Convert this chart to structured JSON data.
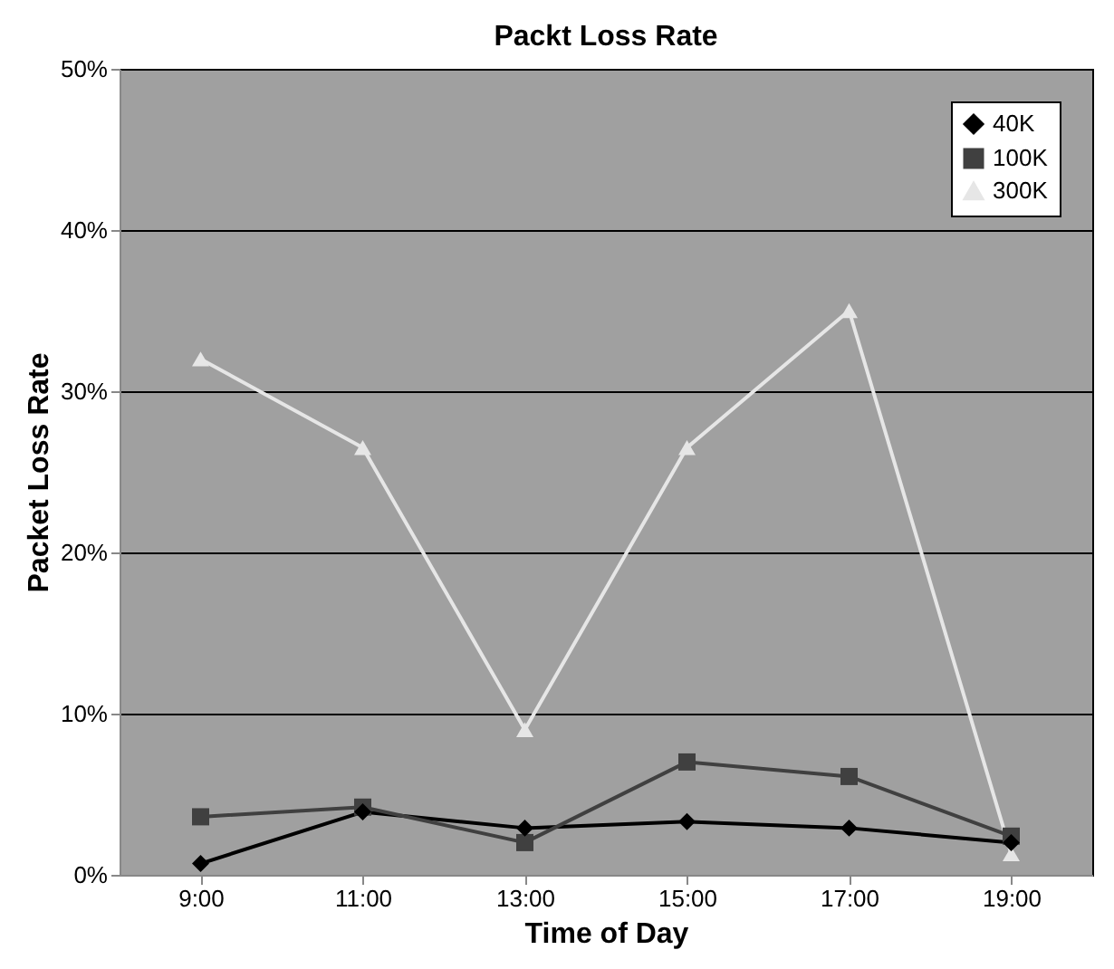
{
  "chart_data": {
    "type": "line",
    "title": "Packt Loss Rate",
    "xlabel": "Time of Day",
    "ylabel": "Packet Loss Rate",
    "categories": [
      "9:00",
      "11:00",
      "13:00",
      "15:00",
      "17:00",
      "19:00"
    ],
    "series": [
      {
        "name": "40K",
        "color": "#000000",
        "marker": "diamond",
        "values": [
          0.7,
          3.9,
          2.9,
          3.3,
          2.9,
          2.0
        ]
      },
      {
        "name": "100K",
        "color": "#404040",
        "marker": "square",
        "values": [
          3.6,
          4.2,
          2.0,
          7.0,
          6.1,
          2.4
        ]
      },
      {
        "name": "300K",
        "color": "#e6e6e6",
        "marker": "triangle",
        "values": [
          32,
          26.5,
          9,
          26.5,
          35,
          1.3
        ]
      }
    ],
    "ylim": [
      0,
      50
    ],
    "yticks": [
      {
        "value": 0,
        "label": "0%"
      },
      {
        "value": 10,
        "label": "10%"
      },
      {
        "value": 20,
        "label": "20%"
      },
      {
        "value": 30,
        "label": "30%"
      },
      {
        "value": 40,
        "label": "40%"
      },
      {
        "value": 50,
        "label": "50%"
      }
    ],
    "grid": "y",
    "legend": "top right",
    "line_style": "solid"
  }
}
